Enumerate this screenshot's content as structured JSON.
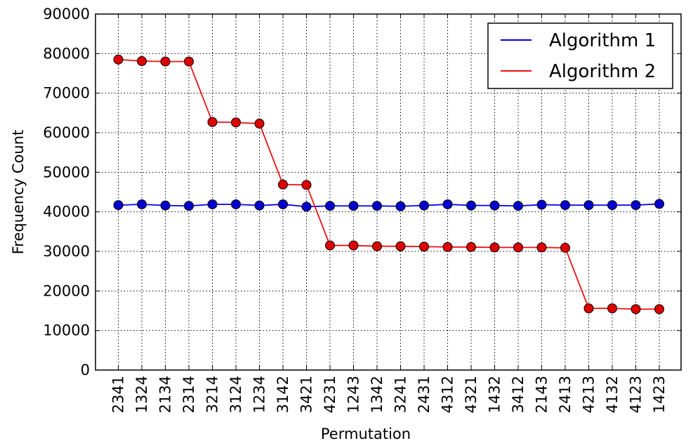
{
  "chart_data": {
    "type": "line",
    "title": "",
    "xlabel": "Permutation",
    "ylabel": "Frequency Count",
    "ylim": [
      0,
      90000
    ],
    "yticks": [
      0,
      10000,
      20000,
      30000,
      40000,
      50000,
      60000,
      70000,
      80000,
      90000
    ],
    "grid": true,
    "legend_position": "top-right",
    "categories": [
      "2341",
      "1324",
      "2134",
      "2314",
      "3214",
      "3124",
      "1234",
      "3142",
      "3421",
      "4231",
      "1243",
      "1342",
      "3241",
      "2431",
      "4312",
      "4321",
      "1432",
      "3412",
      "2143",
      "2413",
      "4213",
      "4132",
      "4123",
      "1423"
    ],
    "series": [
      {
        "name": "Algorithm 1",
        "color": "#0000ee",
        "marker_color": "#0000cc",
        "values": [
          41700,
          41900,
          41600,
          41500,
          41900,
          41900,
          41600,
          41900,
          41300,
          41500,
          41500,
          41500,
          41400,
          41600,
          41900,
          41600,
          41600,
          41500,
          41800,
          41700,
          41700,
          41700,
          41700,
          42000
        ]
      },
      {
        "name": "Algorithm 2",
        "color": "#ee1111",
        "marker_color": "#dd0000",
        "values": [
          78500,
          78100,
          78000,
          78000,
          62700,
          62600,
          62300,
          46900,
          46800,
          31500,
          31500,
          31300,
          31300,
          31200,
          31100,
          31100,
          31000,
          31000,
          31000,
          30900,
          15600,
          15600,
          15400,
          15400
        ]
      }
    ]
  }
}
